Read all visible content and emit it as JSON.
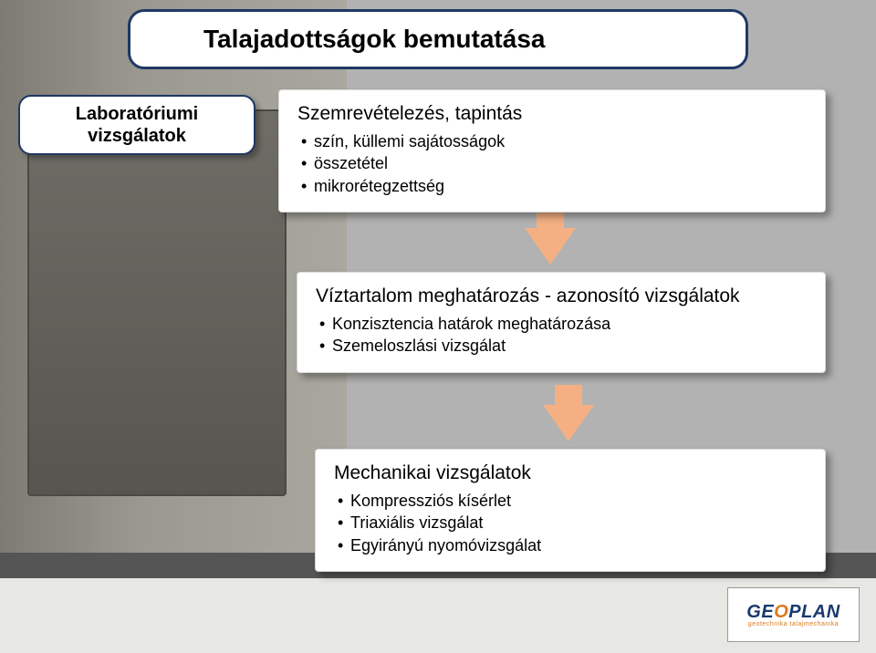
{
  "title": "Talajadottságok bemutatása",
  "left_box": {
    "line1": "Laboratóriumi",
    "line2": "vizsgálatok"
  },
  "card1": {
    "heading": "Szemrevételezés, tapintás",
    "items": [
      "szín, küllemi sajátosságok",
      "összetétel",
      "mikrorétegzettség"
    ]
  },
  "card2": {
    "heading": "Víztartalom meghatározás - azonosító vizsgálatok",
    "items": [
      "Konzisztencia határok meghatározása",
      "Szemeloszlási vizsgálat"
    ]
  },
  "card3": {
    "heading": "Mechanikai vizsgálatok",
    "items": [
      "Kompressziós kísérlet",
      "Triaxiális vizsgálat",
      "Egyirányú nyomóvizsgálat"
    ]
  },
  "logo": {
    "name": "GEOPLAN",
    "tag": "geotechnika  talajmechanika"
  },
  "colors": {
    "title_border": "#1f3864",
    "arrow": "#f4b083",
    "bg": "#b2b2b2"
  }
}
